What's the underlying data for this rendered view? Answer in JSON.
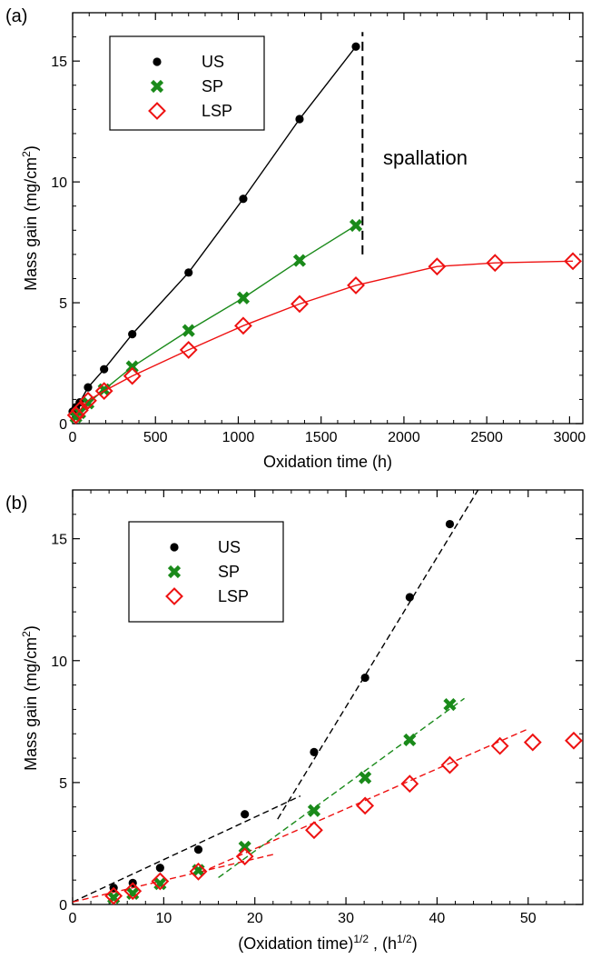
{
  "figure": {
    "panels": [
      {
        "panel_label": "(a)",
        "xlabel": "Oxidation time (h)",
        "ylabel_main": "Mass gain (mg/cm",
        "ylabel_sup": "2",
        "ylabel_close": ")",
        "annotation": "spallation"
      },
      {
        "panel_label": "(b)",
        "xlabel_main": "(Oxidation time)",
        "xlabel_sup": "1/2",
        "xlabel_mid": " ,  (h",
        "xlabel_sup2": "1/2",
        "xlabel_close": ")",
        "ylabel_main": "Mass gain (mg/cm",
        "ylabel_sup": "2",
        "ylabel_close": ")"
      }
    ]
  },
  "chart_data": [
    {
      "type": "line",
      "xlim": [
        0,
        3080
      ],
      "ylim": [
        0,
        17
      ],
      "xticks": [
        0,
        500,
        1000,
        1500,
        2000,
        2500,
        3000
      ],
      "yticks": [
        0,
        5,
        10,
        15
      ],
      "grid": false,
      "legend_position": "top-left",
      "annotation_line_x": 1750,
      "annotation_line_y": [
        7,
        16.2
      ],
      "series": [
        {
          "name": "US",
          "color": "#000000",
          "marker": "circle",
          "x": [
            0,
            20,
            43,
            93,
            190,
            360,
            700,
            1030,
            1370,
            1710
          ],
          "y": [
            0.5,
            0.68,
            0.88,
            1.5,
            2.25,
            3.7,
            6.25,
            9.3,
            12.6,
            15.6
          ]
        },
        {
          "name": "SP",
          "color": "#1a8a1a",
          "marker": "x",
          "x": [
            20,
            43,
            93,
            190,
            360,
            700,
            1030,
            1370,
            1710
          ],
          "y": [
            0.28,
            0.45,
            0.85,
            1.4,
            2.35,
            3.85,
            5.2,
            6.75,
            8.2
          ]
        },
        {
          "name": "LSP",
          "color": "#ee1111",
          "marker": "diamond",
          "x": [
            20,
            43,
            93,
            190,
            360,
            700,
            1030,
            1370,
            1710,
            2200,
            2550,
            3020
          ],
          "y": [
            0.35,
            0.55,
            0.95,
            1.35,
            1.97,
            3.05,
            4.05,
            4.95,
            5.72,
            6.5,
            6.65,
            6.72
          ]
        }
      ]
    },
    {
      "type": "scatter",
      "xlim": [
        0,
        56
      ],
      "ylim": [
        0,
        17
      ],
      "xticks": [
        0,
        10,
        20,
        30,
        40,
        50
      ],
      "yticks": [
        0,
        5,
        10,
        15
      ],
      "grid": false,
      "legend_position": "top-left",
      "series": [
        {
          "name": "US",
          "color": "#000000",
          "marker": "circle",
          "x": [
            4.5,
            6.6,
            9.6,
            13.8,
            18.9,
            26.5,
            32.1,
            37,
            41.4
          ],
          "y": [
            0.68,
            0.88,
            1.5,
            2.25,
            3.7,
            6.25,
            9.3,
            12.6,
            15.6
          ]
        },
        {
          "name": "SP",
          "color": "#1a8a1a",
          "marker": "x",
          "x": [
            4.5,
            6.6,
            9.6,
            13.8,
            18.9,
            26.5,
            32.1,
            37,
            41.4
          ],
          "y": [
            0.28,
            0.45,
            0.85,
            1.4,
            2.35,
            3.85,
            5.2,
            6.75,
            8.2
          ]
        },
        {
          "name": "LSP",
          "color": "#ee1111",
          "marker": "diamond",
          "x": [
            4.5,
            6.6,
            9.6,
            13.8,
            18.9,
            26.5,
            32.1,
            37,
            41.4,
            46.9,
            50.5,
            55
          ],
          "y": [
            0.35,
            0.55,
            0.95,
            1.35,
            1.97,
            3.05,
            4.05,
            4.95,
            5.72,
            6.5,
            6.65,
            6.72
          ]
        }
      ],
      "fit_lines": [
        {
          "color": "#000000",
          "from": [
            0,
            0.1
          ],
          "to": [
            25,
            4.45
          ]
        },
        {
          "color": "#000000",
          "from": [
            22.5,
            3.5
          ],
          "to": [
            44.5,
            17
          ]
        },
        {
          "color": "#1a8a1a",
          "from": [
            16,
            1.1
          ],
          "to": [
            43,
            8.45
          ]
        },
        {
          "color": "#ee1111",
          "from": [
            0,
            0.1
          ],
          "to": [
            22,
            2.05
          ]
        },
        {
          "color": "#ee1111",
          "from": [
            14,
            1.3
          ],
          "to": [
            50,
            7.2
          ]
        }
      ]
    }
  ]
}
